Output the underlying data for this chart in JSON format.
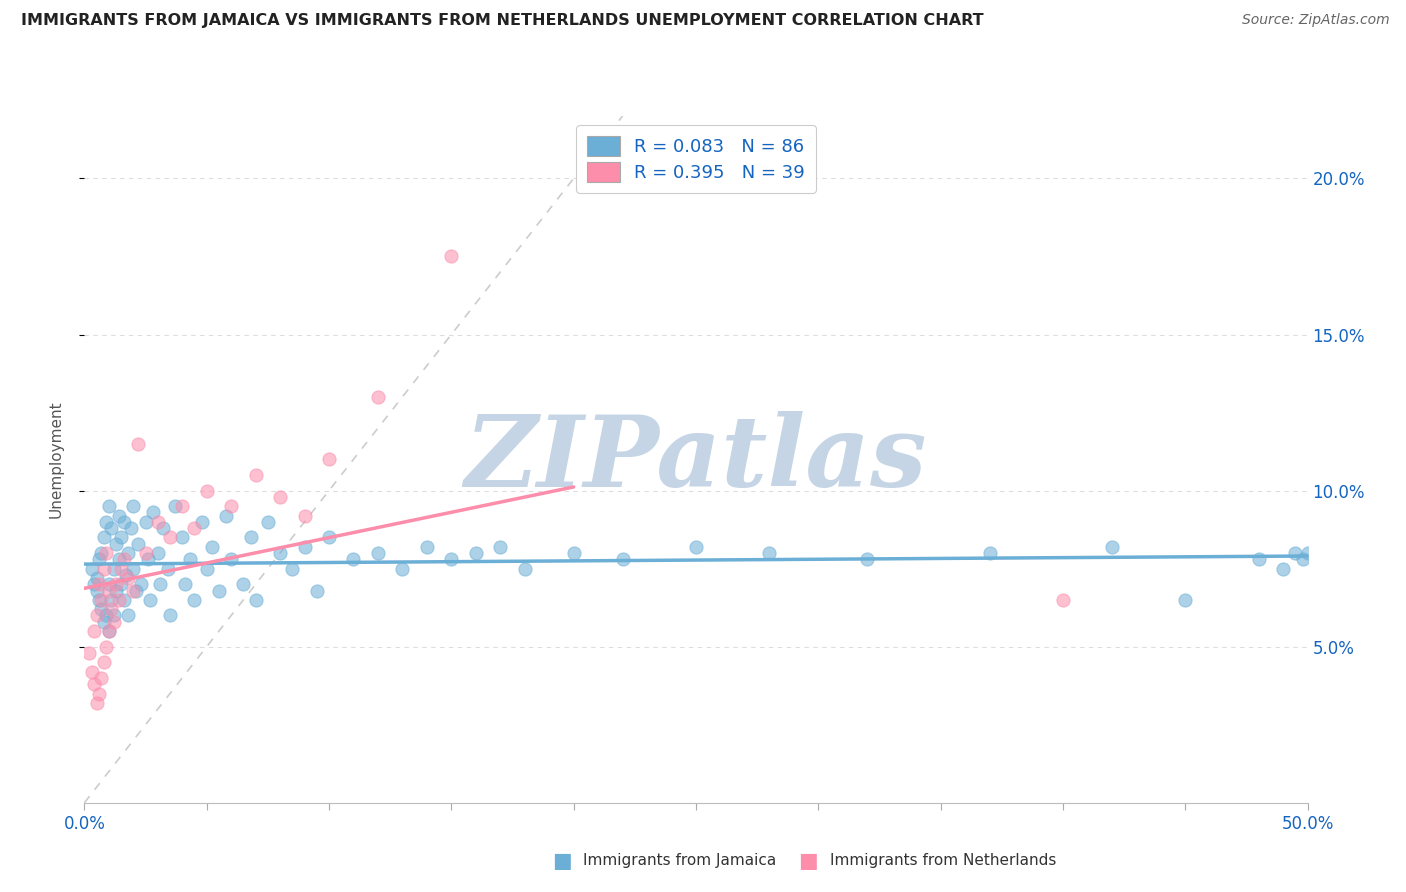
{
  "title": "IMMIGRANTS FROM JAMAICA VS IMMIGRANTS FROM NETHERLANDS UNEMPLOYMENT CORRELATION CHART",
  "source": "Source: ZipAtlas.com",
  "ylabel": "Unemployment",
  "xlim": [
    0.0,
    0.5
  ],
  "ylim": [
    0.0,
    0.22
  ],
  "ytick_positions": [
    0.05,
    0.1,
    0.15,
    0.2
  ],
  "ytick_labels": [
    "5.0%",
    "10.0%",
    "15.0%",
    "20.0%"
  ],
  "xtick_positions": [
    0.0,
    0.05,
    0.1,
    0.15,
    0.2,
    0.25,
    0.3,
    0.35,
    0.4,
    0.45,
    0.5
  ],
  "xtick_labels": [
    "0.0%",
    "",
    "",
    "",
    "",
    "",
    "",
    "",
    "",
    "",
    "50.0%"
  ],
  "jamaica_color": "#6baed6",
  "netherlands_color": "#fc8dab",
  "jamaica_R": 0.083,
  "jamaica_N": 86,
  "netherlands_R": 0.395,
  "netherlands_N": 39,
  "legend_R_N_color": "#1565c0",
  "legend_label_jamaica": "Immigrants from Jamaica",
  "legend_label_netherlands": "Immigrants from Netherlands",
  "watermark": "ZIPatlas",
  "watermark_color": "#c5d5e5",
  "background_color": "#ffffff",
  "grid_color": "#dddddd",
  "axis_label_color": "#1565c0",
  "title_color": "#222222",
  "source_color": "#666666",
  "diag_color": "#cccccc",
  "jamaica_scatter_x": [
    0.003,
    0.004,
    0.005,
    0.005,
    0.006,
    0.006,
    0.007,
    0.007,
    0.008,
    0.008,
    0.009,
    0.009,
    0.01,
    0.01,
    0.01,
    0.011,
    0.011,
    0.012,
    0.012,
    0.013,
    0.013,
    0.014,
    0.014,
    0.015,
    0.015,
    0.016,
    0.016,
    0.017,
    0.018,
    0.018,
    0.019,
    0.02,
    0.02,
    0.021,
    0.022,
    0.023,
    0.025,
    0.026,
    0.027,
    0.028,
    0.03,
    0.031,
    0.032,
    0.034,
    0.035,
    0.037,
    0.04,
    0.041,
    0.043,
    0.045,
    0.048,
    0.05,
    0.052,
    0.055,
    0.058,
    0.06,
    0.065,
    0.068,
    0.07,
    0.075,
    0.08,
    0.085,
    0.09,
    0.095,
    0.1,
    0.11,
    0.12,
    0.13,
    0.14,
    0.15,
    0.16,
    0.17,
    0.18,
    0.2,
    0.22,
    0.25,
    0.28,
    0.32,
    0.37,
    0.42,
    0.45,
    0.48,
    0.49,
    0.495,
    0.498,
    0.5
  ],
  "jamaica_scatter_y": [
    0.075,
    0.07,
    0.068,
    0.072,
    0.065,
    0.078,
    0.062,
    0.08,
    0.058,
    0.085,
    0.06,
    0.09,
    0.055,
    0.07,
    0.095,
    0.065,
    0.088,
    0.075,
    0.06,
    0.083,
    0.068,
    0.078,
    0.092,
    0.07,
    0.085,
    0.065,
    0.09,
    0.073,
    0.08,
    0.06,
    0.088,
    0.075,
    0.095,
    0.068,
    0.083,
    0.07,
    0.09,
    0.078,
    0.065,
    0.093,
    0.08,
    0.07,
    0.088,
    0.075,
    0.06,
    0.095,
    0.085,
    0.07,
    0.078,
    0.065,
    0.09,
    0.075,
    0.082,
    0.068,
    0.092,
    0.078,
    0.07,
    0.085,
    0.065,
    0.09,
    0.08,
    0.075,
    0.082,
    0.068,
    0.085,
    0.078,
    0.08,
    0.075,
    0.082,
    0.078,
    0.08,
    0.082,
    0.075,
    0.08,
    0.078,
    0.082,
    0.08,
    0.078,
    0.08,
    0.082,
    0.065,
    0.078,
    0.075,
    0.08,
    0.078,
    0.08
  ],
  "netherlands_scatter_x": [
    0.002,
    0.003,
    0.004,
    0.004,
    0.005,
    0.005,
    0.006,
    0.006,
    0.007,
    0.007,
    0.008,
    0.008,
    0.009,
    0.009,
    0.01,
    0.01,
    0.011,
    0.012,
    0.013,
    0.014,
    0.015,
    0.016,
    0.018,
    0.02,
    0.022,
    0.025,
    0.03,
    0.035,
    0.04,
    0.045,
    0.05,
    0.06,
    0.07,
    0.08,
    0.09,
    0.1,
    0.12,
    0.15,
    0.4
  ],
  "netherlands_scatter_y": [
    0.048,
    0.042,
    0.038,
    0.055,
    0.032,
    0.06,
    0.035,
    0.07,
    0.04,
    0.065,
    0.045,
    0.075,
    0.05,
    0.08,
    0.055,
    0.068,
    0.062,
    0.058,
    0.07,
    0.065,
    0.075,
    0.078,
    0.072,
    0.068,
    0.115,
    0.08,
    0.09,
    0.085,
    0.095,
    0.088,
    0.1,
    0.095,
    0.105,
    0.098,
    0.092,
    0.11,
    0.13,
    0.175,
    0.065
  ]
}
